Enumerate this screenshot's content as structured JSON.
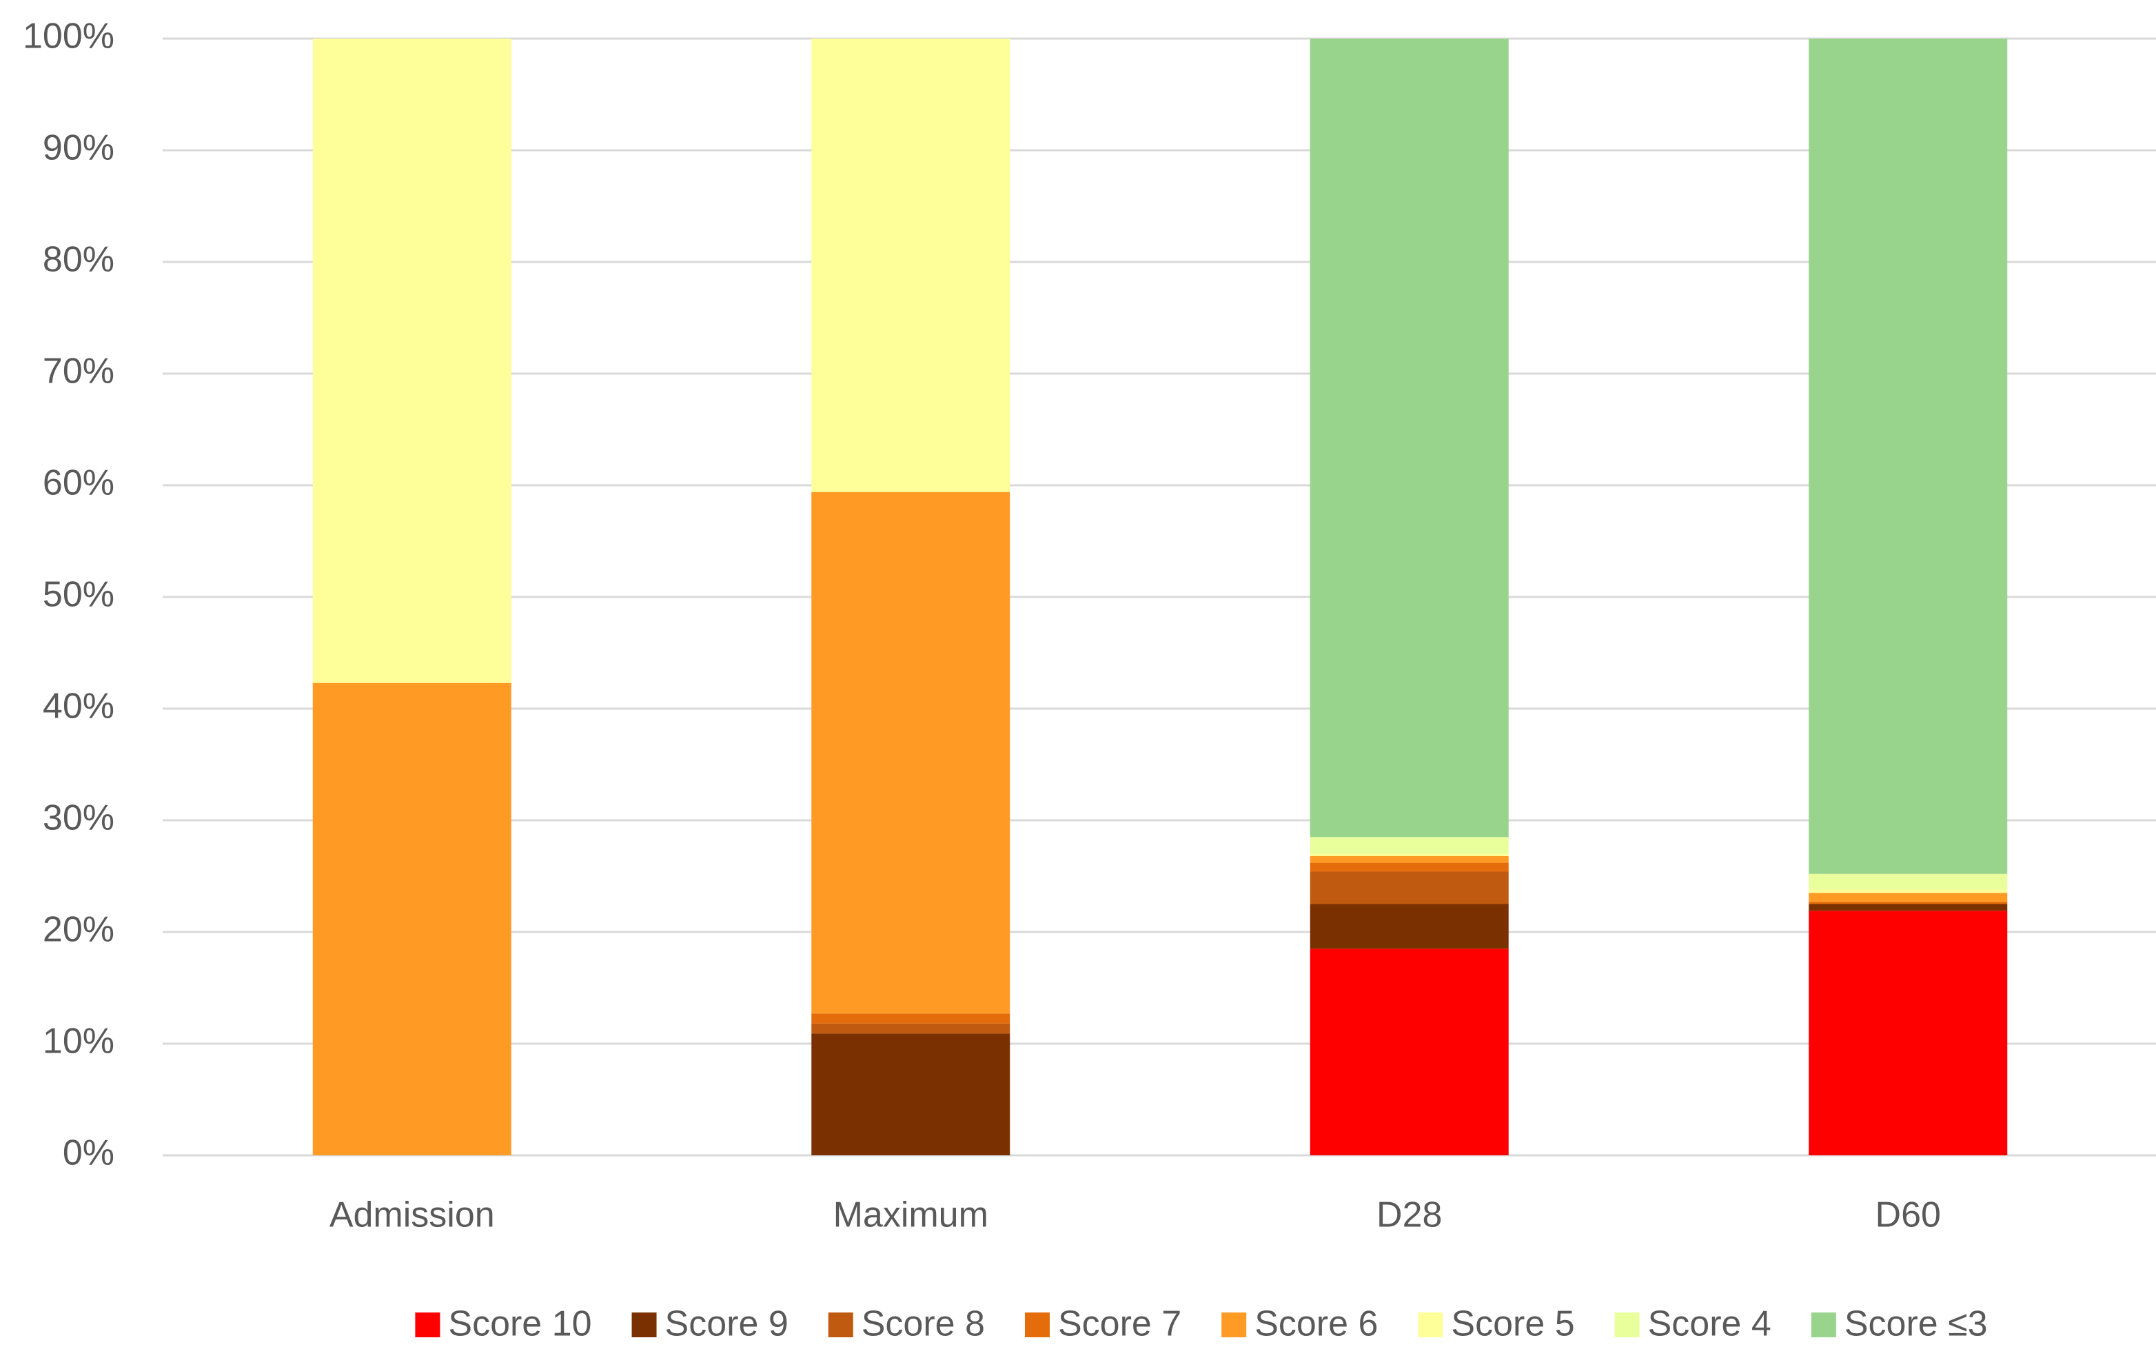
{
  "chart_data": {
    "type": "stacked_bar",
    "categories": [
      "Admission",
      "Maximum",
      "D28",
      "D60"
    ],
    "series": [
      {
        "name": "Score 10",
        "color": "#ff0000",
        "values": [
          0,
          0,
          18.5,
          21.9
        ]
      },
      {
        "name": "Score 9",
        "color": "#7b3000",
        "values": [
          0,
          10.9,
          4.0,
          0.6
        ]
      },
      {
        "name": "Score 8",
        "color": "#c05a10",
        "values": [
          0,
          0.9,
          2.9,
          0
        ]
      },
      {
        "name": "Score 7",
        "color": "#e46c0a",
        "values": [
          0,
          0.9,
          0.8,
          0.2
        ]
      },
      {
        "name": "Score 6",
        "color": "#ff9b25",
        "values": [
          42.3,
          46.7,
          0.6,
          0.8
        ]
      },
      {
        "name": "Score 5",
        "color": "#ffff99",
        "values": [
          57.7,
          40.6,
          0.2,
          0.3
        ]
      },
      {
        "name": "Score 4",
        "color": "#e8ff9c",
        "values": [
          0,
          0,
          1.5,
          1.4
        ]
      },
      {
        "name": "Score ≤3",
        "color": "#98d48c",
        "values": [
          0,
          0,
          71.5,
          74.8
        ]
      }
    ],
    "ylim": [
      0,
      100
    ],
    "yticks": [
      {
        "value": 0,
        "label": "0%"
      },
      {
        "value": 10,
        "label": "10%"
      },
      {
        "value": 20,
        "label": "20%"
      },
      {
        "value": 30,
        "label": "30%"
      },
      {
        "value": 40,
        "label": "40%"
      },
      {
        "value": 50,
        "label": "50%"
      },
      {
        "value": 60,
        "label": "60%"
      },
      {
        "value": 70,
        "label": "70%"
      },
      {
        "value": 80,
        "label": "80%"
      },
      {
        "value": 90,
        "label": "90%"
      },
      {
        "value": 100,
        "label": "100%"
      }
    ],
    "grid": true,
    "legend": "bottom"
  }
}
